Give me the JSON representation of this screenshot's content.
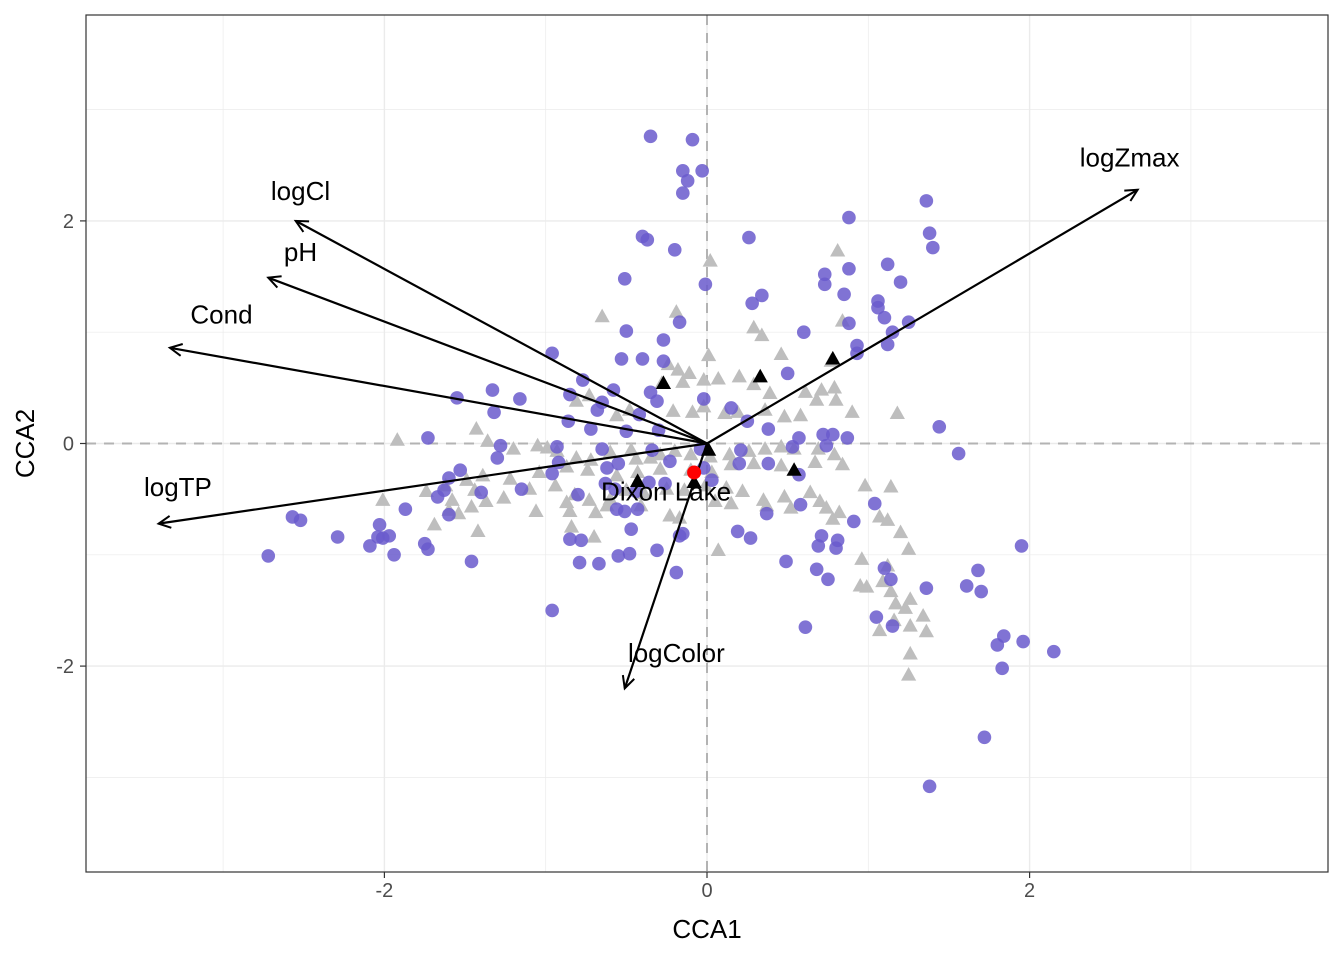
{
  "chart_data": {
    "type": "scatter",
    "xlabel": "CCA1",
    "ylabel": "CCA2",
    "xlim": [
      -3.85,
      3.85
    ],
    "ylim": [
      -3.85,
      3.85
    ],
    "x_ticks": [
      -2,
      0,
      2
    ],
    "y_ticks": [
      -2,
      0,
      2
    ],
    "x_tick_labels": [
      "-2",
      "0",
      "2"
    ],
    "y_tick_labels": [
      "-2",
      "0",
      "2"
    ],
    "grid": true,
    "colors": {
      "sites": "#6a5acd",
      "species": "#bebebe",
      "highlight_species": "#000000",
      "target_site": "#ff0000",
      "vectors": "#000000",
      "zero_lines": "#b3b3b3"
    },
    "sites": [
      [
        -0.35,
        2.76
      ],
      [
        -0.09,
        2.73
      ],
      [
        -0.03,
        2.45
      ],
      [
        -0.15,
        2.45
      ],
      [
        -0.12,
        2.36
      ],
      [
        -0.15,
        2.25
      ],
      [
        0.88,
        2.03
      ],
      [
        1.36,
        2.18
      ],
      [
        1.38,
        1.89
      ],
      [
        1.4,
        1.76
      ],
      [
        -0.4,
        1.86
      ],
      [
        -0.37,
        1.83
      ],
      [
        -0.2,
        1.74
      ],
      [
        0.26,
        1.85
      ],
      [
        -0.51,
        1.48
      ],
      [
        0.73,
        1.52
      ],
      [
        0.88,
        1.57
      ],
      [
        1.12,
        1.61
      ],
      [
        1.2,
        1.45
      ],
      [
        0.73,
        1.43
      ],
      [
        -0.01,
        1.43
      ],
      [
        0.85,
        1.34
      ],
      [
        0.34,
        1.33
      ],
      [
        0.28,
        1.26
      ],
      [
        1.06,
        1.28
      ],
      [
        1.06,
        1.22
      ],
      [
        1.1,
        1.13
      ],
      [
        1.25,
        1.09
      ],
      [
        1.15,
        1.0
      ],
      [
        -0.17,
        1.09
      ],
      [
        -0.5,
        1.01
      ],
      [
        0.6,
        1.0
      ],
      [
        -0.27,
        0.93
      ],
      [
        0.88,
        1.08
      ],
      [
        0.93,
        0.88
      ],
      [
        0.93,
        0.81
      ],
      [
        1.12,
        0.89
      ],
      [
        -0.96,
        0.81
      ],
      [
        -0.53,
        0.76
      ],
      [
        -0.4,
        0.76
      ],
      [
        -0.27,
        0.74
      ],
      [
        0.5,
        0.63
      ],
      [
        -0.77,
        0.57
      ],
      [
        -0.58,
        0.48
      ],
      [
        -1.33,
        0.48
      ],
      [
        -0.85,
        0.44
      ],
      [
        -0.35,
        0.46
      ],
      [
        -1.55,
        0.41
      ],
      [
        -1.16,
        0.4
      ],
      [
        -1.32,
        0.28
      ],
      [
        -0.65,
        0.37
      ],
      [
        -0.31,
        0.38
      ],
      [
        -0.02,
        0.4
      ],
      [
        0.15,
        0.32
      ],
      [
        -0.42,
        0.26
      ],
      [
        -0.68,
        0.3
      ],
      [
        -0.86,
        0.2
      ],
      [
        -0.72,
        0.13
      ],
      [
        -0.5,
        0.11
      ],
      [
        -0.3,
        0.12
      ],
      [
        0.25,
        0.2
      ],
      [
        0.38,
        0.13
      ],
      [
        0.72,
        0.08
      ],
      [
        0.78,
        0.08
      ],
      [
        0.87,
        0.05
      ],
      [
        1.44,
        0.15
      ],
      [
        0.57,
        0.05
      ],
      [
        -1.73,
        0.05
      ],
      [
        -1.28,
        -0.02
      ],
      [
        -0.93,
        -0.03
      ],
      [
        -0.65,
        -0.05
      ],
      [
        -0.34,
        -0.06
      ],
      [
        -0.04,
        -0.05
      ],
      [
        0.21,
        -0.06
      ],
      [
        0.53,
        -0.03
      ],
      [
        0.74,
        -0.02
      ],
      [
        1.56,
        -0.09
      ],
      [
        -1.3,
        -0.13
      ],
      [
        -0.92,
        -0.17
      ],
      [
        -0.55,
        -0.18
      ],
      [
        -0.23,
        -0.16
      ],
      [
        -0.62,
        -0.22
      ],
      [
        -0.02,
        -0.22
      ],
      [
        0.2,
        -0.18
      ],
      [
        0.38,
        -0.18
      ],
      [
        0.57,
        -0.28
      ],
      [
        -1.53,
        -0.24
      ],
      [
        -1.6,
        -0.31
      ],
      [
        -0.96,
        -0.27
      ],
      [
        -0.63,
        -0.36
      ],
      [
        -0.36,
        -0.35
      ],
      [
        0.03,
        -0.33
      ],
      [
        -1.15,
        -0.41
      ],
      [
        -0.8,
        -0.46
      ],
      [
        -0.57,
        -0.41
      ],
      [
        -0.44,
        -0.43
      ],
      [
        -0.26,
        -0.36
      ],
      [
        -1.4,
        -0.44
      ],
      [
        -1.67,
        -0.48
      ],
      [
        -1.63,
        -0.42
      ],
      [
        -0.56,
        -0.59
      ],
      [
        -0.51,
        -0.61
      ],
      [
        -0.43,
        -0.59
      ],
      [
        0.37,
        -0.63
      ],
      [
        0.58,
        -0.55
      ],
      [
        1.04,
        -0.54
      ],
      [
        -1.6,
        -0.64
      ],
      [
        -1.87,
        -0.59
      ],
      [
        -2.57,
        -0.66
      ],
      [
        -2.52,
        -0.69
      ],
      [
        0.91,
        -0.7
      ],
      [
        -2.03,
        -0.73
      ],
      [
        -0.47,
        -0.77
      ],
      [
        0.19,
        -0.79
      ],
      [
        0.27,
        -0.85
      ],
      [
        0.71,
        -0.83
      ],
      [
        0.81,
        -0.87
      ],
      [
        0.69,
        -0.92
      ],
      [
        0.8,
        -0.94
      ],
      [
        -0.85,
        -0.86
      ],
      [
        -0.78,
        -0.87
      ],
      [
        -0.15,
        -0.81
      ],
      [
        -0.17,
        -0.83
      ],
      [
        -2.29,
        -0.84
      ],
      [
        -2.01,
        -0.85
      ],
      [
        -2.04,
        -0.84
      ],
      [
        -1.97,
        -0.83
      ],
      [
        -2.09,
        -0.92
      ],
      [
        -1.75,
        -0.9
      ],
      [
        -1.73,
        -0.95
      ],
      [
        -1.94,
        -1.0
      ],
      [
        -0.48,
        -0.99
      ],
      [
        -0.55,
        -1.01
      ],
      [
        -0.31,
        -0.96
      ],
      [
        -1.46,
        -1.06
      ],
      [
        -2.72,
        -1.01
      ],
      [
        -0.67,
        -1.08
      ],
      [
        -0.79,
        -1.07
      ],
      [
        -0.19,
        -1.16
      ],
      [
        0.49,
        -1.06
      ],
      [
        0.68,
        -1.13
      ],
      [
        0.75,
        -1.22
      ],
      [
        1.1,
        -1.12
      ],
      [
        1.14,
        -1.22
      ],
      [
        1.36,
        -1.3
      ],
      [
        1.61,
        -1.28
      ],
      [
        1.68,
        -1.14
      ],
      [
        1.7,
        -1.33
      ],
      [
        1.95,
        -0.92
      ],
      [
        -0.96,
        -1.5
      ],
      [
        1.05,
        -1.56
      ],
      [
        1.15,
        -1.64
      ],
      [
        0.61,
        -1.65
      ],
      [
        1.8,
        -1.81
      ],
      [
        1.84,
        -1.73
      ],
      [
        1.96,
        -1.78
      ],
      [
        2.15,
        -1.87
      ],
      [
        1.83,
        -2.02
      ],
      [
        1.72,
        -2.64
      ],
      [
        1.38,
        -3.08
      ]
    ],
    "species": [
      [
        0.02,
        1.64
      ],
      [
        -0.65,
        1.14
      ],
      [
        -0.19,
        1.18
      ],
      [
        0.81,
        1.73
      ],
      [
        0.29,
        1.04
      ],
      [
        0.34,
        0.97
      ],
      [
        0.84,
        1.1
      ],
      [
        0.46,
        0.8
      ],
      [
        0.77,
        0.74
      ],
      [
        0.01,
        0.79
      ],
      [
        -0.24,
        0.71
      ],
      [
        -0.18,
        0.66
      ],
      [
        -0.11,
        0.63
      ],
      [
        0.07,
        0.58
      ],
      [
        0.2,
        0.6
      ],
      [
        -0.28,
        0.54
      ],
      [
        -0.15,
        0.55
      ],
      [
        -0.02,
        0.57
      ],
      [
        0.29,
        0.53
      ],
      [
        0.39,
        0.45
      ],
      [
        0.61,
        0.46
      ],
      [
        0.71,
        0.48
      ],
      [
        0.79,
        0.5
      ],
      [
        0.8,
        0.39
      ],
      [
        0.68,
        0.39
      ],
      [
        0.9,
        0.28
      ],
      [
        1.18,
        0.27
      ],
      [
        0.58,
        0.25
      ],
      [
        0.48,
        0.24
      ],
      [
        0.36,
        0.3
      ],
      [
        0.19,
        0.28
      ],
      [
        0.11,
        0.27
      ],
      [
        -0.09,
        0.28
      ],
      [
        -0.02,
        0.33
      ],
      [
        -0.21,
        0.29
      ],
      [
        -0.48,
        0.3
      ],
      [
        -0.56,
        0.25
      ],
      [
        -0.73,
        0.43
      ],
      [
        -0.81,
        0.38
      ],
      [
        -1.43,
        0.13
      ],
      [
        -1.92,
        0.03
      ],
      [
        -1.36,
        0.02
      ],
      [
        -1.2,
        -0.05
      ],
      [
        -1.05,
        -0.02
      ],
      [
        -0.99,
        -0.04
      ],
      [
        -0.93,
        -0.07
      ],
      [
        -0.81,
        -0.13
      ],
      [
        -0.72,
        -0.15
      ],
      [
        -0.6,
        -0.08
      ],
      [
        -0.47,
        -0.06
      ],
      [
        -0.44,
        -0.14
      ],
      [
        -0.35,
        -0.13
      ],
      [
        -0.29,
        -0.1
      ],
      [
        -0.2,
        -0.07
      ],
      [
        -0.1,
        -0.1
      ],
      [
        0.02,
        -0.12
      ],
      [
        0.14,
        -0.1
      ],
      [
        0.26,
        -0.07
      ],
      [
        0.36,
        -0.05
      ],
      [
        0.46,
        -0.03
      ],
      [
        0.54,
        -0.05
      ],
      [
        0.69,
        -0.05
      ],
      [
        0.79,
        -0.1
      ],
      [
        0.84,
        -0.19
      ],
      [
        0.67,
        -0.17
      ],
      [
        0.46,
        -0.2
      ],
      [
        0.29,
        -0.18
      ],
      [
        0.15,
        -0.19
      ],
      [
        0.03,
        -0.26
      ],
      [
        -0.1,
        -0.24
      ],
      [
        -0.29,
        -0.23
      ],
      [
        -0.43,
        -0.26
      ],
      [
        -0.56,
        -0.29
      ],
      [
        -0.74,
        -0.24
      ],
      [
        -0.87,
        -0.21
      ],
      [
        -1.04,
        -0.26
      ],
      [
        -1.22,
        -0.32
      ],
      [
        -1.39,
        -0.29
      ],
      [
        -1.49,
        -0.33
      ],
      [
        -1.62,
        -0.38
      ],
      [
        -1.74,
        -0.43
      ],
      [
        -1.58,
        -0.51
      ],
      [
        -1.44,
        -0.42
      ],
      [
        -1.26,
        -0.49
      ],
      [
        -1.1,
        -0.41
      ],
      [
        -0.94,
        -0.38
      ],
      [
        -0.82,
        -0.46
      ],
      [
        -0.73,
        -0.51
      ],
      [
        -0.6,
        -0.5
      ],
      [
        -0.5,
        -0.42
      ],
      [
        -0.39,
        -0.45
      ],
      [
        -0.25,
        -0.41
      ],
      [
        -0.14,
        -0.42
      ],
      [
        -0.01,
        -0.38
      ],
      [
        0.12,
        -0.4
      ],
      [
        0.22,
        -0.43
      ],
      [
        0.35,
        -0.51
      ],
      [
        0.48,
        -0.48
      ],
      [
        0.64,
        -0.44
      ],
      [
        0.7,
        -0.52
      ],
      [
        0.74,
        -0.58
      ],
      [
        0.78,
        -0.68
      ],
      [
        0.82,
        -0.62
      ],
      [
        0.52,
        -0.58
      ],
      [
        0.37,
        -0.56
      ],
      [
        0.15,
        -0.54
      ],
      [
        0.05,
        -0.52
      ],
      [
        -0.17,
        -0.67
      ],
      [
        -0.41,
        -0.56
      ],
      [
        -0.62,
        -0.56
      ],
      [
        -0.69,
        -0.62
      ],
      [
        -0.85,
        -0.61
      ],
      [
        -0.84,
        -0.75
      ],
      [
        -0.87,
        -0.53
      ],
      [
        -1.06,
        -0.61
      ],
      [
        -1.37,
        -0.52
      ],
      [
        -1.46,
        -0.57
      ],
      [
        -1.54,
        -0.63
      ],
      [
        -1.6,
        -0.6
      ],
      [
        -1.69,
        -0.73
      ],
      [
        -1.42,
        -0.79
      ],
      [
        -2.01,
        -0.51
      ],
      [
        -0.7,
        -0.84
      ],
      [
        0.07,
        -0.96
      ],
      [
        0.98,
        -0.38
      ],
      [
        1.14,
        -0.39
      ],
      [
        1.07,
        -0.66
      ],
      [
        1.12,
        -0.69
      ],
      [
        1.2,
        -0.8
      ],
      [
        0.96,
        -1.04
      ],
      [
        1.12,
        -1.1
      ],
      [
        1.25,
        -0.95
      ],
      [
        1.09,
        -1.24
      ],
      [
        1.14,
        -1.33
      ],
      [
        0.95,
        -1.28
      ],
      [
        0.99,
        -1.29
      ],
      [
        1.26,
        -1.4
      ],
      [
        1.23,
        -1.48
      ],
      [
        1.16,
        -1.59
      ],
      [
        1.07,
        -1.68
      ],
      [
        1.26,
        -1.64
      ],
      [
        1.36,
        -1.69
      ],
      [
        1.26,
        -1.89
      ],
      [
        1.25,
        -2.08
      ],
      [
        1.34,
        -1.55
      ],
      [
        1.17,
        -1.44
      ],
      [
        -0.23,
        -0.65
      ]
    ],
    "highlight_species": [
      [
        -0.27,
        0.54
      ],
      [
        0.33,
        0.6
      ],
      [
        0.78,
        0.76
      ],
      [
        0.01,
        -0.06
      ],
      [
        -0.43,
        -0.34
      ],
      [
        -0.08,
        -0.35
      ],
      [
        0.54,
        -0.24
      ]
    ],
    "target_site": {
      "label": "Dixon Lake",
      "x": -0.08,
      "y": -0.26
    },
    "vectors": [
      {
        "name": "logZmax",
        "x": 2.67,
        "y": 2.28
      },
      {
        "name": "logCl",
        "x": -2.55,
        "y": 2.0
      },
      {
        "name": "pH",
        "x": -2.72,
        "y": 1.49
      },
      {
        "name": "Cond",
        "x": -3.33,
        "y": 0.86
      },
      {
        "name": "logTP",
        "x": -3.4,
        "y": -0.72
      },
      {
        "name": "logColor",
        "x": -0.51,
        "y": -2.2
      }
    ],
    "vector_labels": [
      {
        "name": "logZmax",
        "x": 2.62,
        "y": 2.55
      },
      {
        "name": "logCl",
        "x": -2.52,
        "y": 2.25
      },
      {
        "name": "pH",
        "x": -2.52,
        "y": 1.7
      },
      {
        "name": "Cond",
        "x": -3.01,
        "y": 1.14
      },
      {
        "name": "logTP",
        "x": -3.28,
        "y": -0.41
      },
      {
        "name": "logColor",
        "x": -0.19,
        "y": -1.9
      }
    ]
  }
}
